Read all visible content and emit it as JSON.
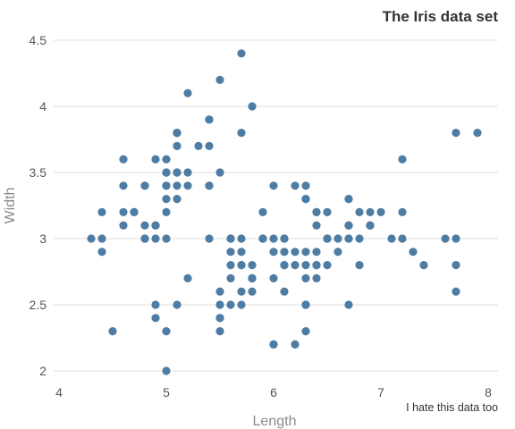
{
  "chart_data": {
    "type": "scatter",
    "title": "The Iris data set",
    "caption": "I hate this data too",
    "xlabel": "Length",
    "ylabel": "Width",
    "xlim": [
      4,
      8
    ],
    "ylim": [
      2,
      4.5
    ],
    "xticks": [
      4,
      5,
      6,
      7,
      8
    ],
    "yticks": [
      2,
      2.5,
      3,
      3.5,
      4,
      4.5
    ],
    "grid": "horizontal",
    "colors": {
      "point": "#4f7ca3",
      "grid": "#e5e5e5",
      "text": "#333333",
      "axis_label": "#8c8c8c"
    },
    "points": [
      [
        5.1,
        3.5
      ],
      [
        4.9,
        3.0
      ],
      [
        4.7,
        3.2
      ],
      [
        4.6,
        3.1
      ],
      [
        5.0,
        3.6
      ],
      [
        5.4,
        3.9
      ],
      [
        4.6,
        3.4
      ],
      [
        5.0,
        3.4
      ],
      [
        4.4,
        2.9
      ],
      [
        4.9,
        3.1
      ],
      [
        5.4,
        3.7
      ],
      [
        4.8,
        3.4
      ],
      [
        4.8,
        3.0
      ],
      [
        4.3,
        3.0
      ],
      [
        5.8,
        4.0
      ],
      [
        5.7,
        4.4
      ],
      [
        5.4,
        3.9
      ],
      [
        5.1,
        3.5
      ],
      [
        5.7,
        3.8
      ],
      [
        5.1,
        3.8
      ],
      [
        5.4,
        3.4
      ],
      [
        5.1,
        3.7
      ],
      [
        4.6,
        3.6
      ],
      [
        5.1,
        3.3
      ],
      [
        4.8,
        3.4
      ],
      [
        5.0,
        3.0
      ],
      [
        5.0,
        3.4
      ],
      [
        5.2,
        3.5
      ],
      [
        5.2,
        3.4
      ],
      [
        4.7,
        3.2
      ],
      [
        4.8,
        3.1
      ],
      [
        5.4,
        3.4
      ],
      [
        5.2,
        4.1
      ],
      [
        5.5,
        4.2
      ],
      [
        4.9,
        3.1
      ],
      [
        5.0,
        3.2
      ],
      [
        5.5,
        3.5
      ],
      [
        4.9,
        3.6
      ],
      [
        4.4,
        3.0
      ],
      [
        5.1,
        3.4
      ],
      [
        5.0,
        3.5
      ],
      [
        4.5,
        2.3
      ],
      [
        4.4,
        3.2
      ],
      [
        5.0,
        3.5
      ],
      [
        5.1,
        3.8
      ],
      [
        4.8,
        3.0
      ],
      [
        5.1,
        3.8
      ],
      [
        4.6,
        3.2
      ],
      [
        5.3,
        3.7
      ],
      [
        5.0,
        3.3
      ],
      [
        7.0,
        3.2
      ],
      [
        6.4,
        3.2
      ],
      [
        6.9,
        3.1
      ],
      [
        5.5,
        2.3
      ],
      [
        6.5,
        2.8
      ],
      [
        5.7,
        2.8
      ],
      [
        6.3,
        3.3
      ],
      [
        4.9,
        2.4
      ],
      [
        6.6,
        2.9
      ],
      [
        5.2,
        2.7
      ],
      [
        5.0,
        2.0
      ],
      [
        5.9,
        3.0
      ],
      [
        6.0,
        2.2
      ],
      [
        6.1,
        2.9
      ],
      [
        5.6,
        2.9
      ],
      [
        6.7,
        3.1
      ],
      [
        5.6,
        3.0
      ],
      [
        5.8,
        2.7
      ],
      [
        6.2,
        2.2
      ],
      [
        5.6,
        2.5
      ],
      [
        5.9,
        3.2
      ],
      [
        6.1,
        2.8
      ],
      [
        6.3,
        2.5
      ],
      [
        6.1,
        2.8
      ],
      [
        6.4,
        2.9
      ],
      [
        6.6,
        3.0
      ],
      [
        6.8,
        2.8
      ],
      [
        6.7,
        3.0
      ],
      [
        6.0,
        2.9
      ],
      [
        5.7,
        2.6
      ],
      [
        5.5,
        2.4
      ],
      [
        5.5,
        2.4
      ],
      [
        5.8,
        2.7
      ],
      [
        6.0,
        2.7
      ],
      [
        5.4,
        3.0
      ],
      [
        6.0,
        3.4
      ],
      [
        6.7,
        3.1
      ],
      [
        6.3,
        2.3
      ],
      [
        5.6,
        3.0
      ],
      [
        5.5,
        2.5
      ],
      [
        5.5,
        2.6
      ],
      [
        6.1,
        3.0
      ],
      [
        5.8,
        2.6
      ],
      [
        5.0,
        2.3
      ],
      [
        5.6,
        2.7
      ],
      [
        5.7,
        3.0
      ],
      [
        5.7,
        2.9
      ],
      [
        6.2,
        2.9
      ],
      [
        5.1,
        2.5
      ],
      [
        5.7,
        2.8
      ],
      [
        6.3,
        3.3
      ],
      [
        5.8,
        2.7
      ],
      [
        7.1,
        3.0
      ],
      [
        6.3,
        2.9
      ],
      [
        6.5,
        3.0
      ],
      [
        7.6,
        3.0
      ],
      [
        4.9,
        2.5
      ],
      [
        7.3,
        2.9
      ],
      [
        6.7,
        2.5
      ],
      [
        7.2,
        3.6
      ],
      [
        6.5,
        3.2
      ],
      [
        6.4,
        2.7
      ],
      [
        6.8,
        3.0
      ],
      [
        5.7,
        2.5
      ],
      [
        5.8,
        2.8
      ],
      [
        6.4,
        3.2
      ],
      [
        6.5,
        3.0
      ],
      [
        7.7,
        3.8
      ],
      [
        7.7,
        2.6
      ],
      [
        6.0,
        2.2
      ],
      [
        6.9,
        3.2
      ],
      [
        5.6,
        2.8
      ],
      [
        7.7,
        2.8
      ],
      [
        6.3,
        2.7
      ],
      [
        6.7,
        3.3
      ],
      [
        7.2,
        3.2
      ],
      [
        6.2,
        2.8
      ],
      [
        6.1,
        3.0
      ],
      [
        6.4,
        2.8
      ],
      [
        7.2,
        3.0
      ],
      [
        7.4,
        2.8
      ],
      [
        7.9,
        3.8
      ],
      [
        6.4,
        2.8
      ],
      [
        6.3,
        2.8
      ],
      [
        6.1,
        2.6
      ],
      [
        7.7,
        3.0
      ],
      [
        6.3,
        3.4
      ],
      [
        6.4,
        3.1
      ],
      [
        6.0,
        3.0
      ],
      [
        6.9,
        3.1
      ],
      [
        6.7,
        3.1
      ],
      [
        6.9,
        3.1
      ],
      [
        5.8,
        2.7
      ],
      [
        6.8,
        3.2
      ],
      [
        6.7,
        3.3
      ],
      [
        6.7,
        3.0
      ],
      [
        6.3,
        2.5
      ],
      [
        6.5,
        3.0
      ],
      [
        6.2,
        3.4
      ],
      [
        5.9,
        3.0
      ]
    ]
  }
}
